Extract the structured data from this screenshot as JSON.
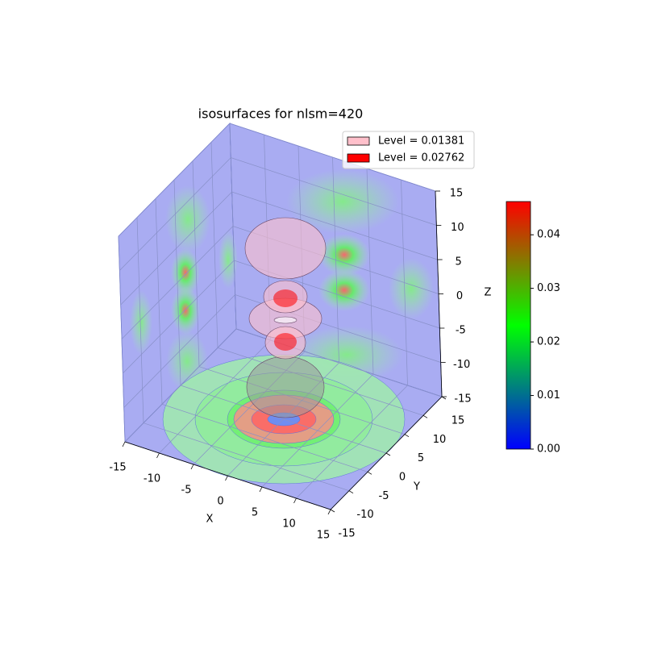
{
  "chart_data": {
    "type": "isosurface3d",
    "title": "isosurfaces for nlsm=420",
    "xlabel": "X",
    "ylabel": "Y",
    "zlabel": "Z",
    "xlim": [
      -15,
      15
    ],
    "ylim": [
      -15,
      15
    ],
    "zlim": [
      -15,
      15
    ],
    "xticks": [
      -15,
      -10,
      -5,
      0,
      5,
      10,
      15
    ],
    "yticks": [
      -15,
      -10,
      -5,
      0,
      5,
      10,
      15
    ],
    "zticks": [
      -15,
      -10,
      -5,
      0,
      5,
      10,
      15
    ],
    "grid": true,
    "pane_color": "#a9acf2",
    "series": [
      {
        "name": "Level = 0.01381",
        "color": "#ffc0cb"
      },
      {
        "name": "Level = 0.02762",
        "color": "#ff0000"
      }
    ],
    "legend": "upper right",
    "colorbar": {
      "clim": [
        0,
        0.0462
      ],
      "colormap": [
        "#0000ff",
        "#00ff00",
        "#ff0000"
      ],
      "ticks": [
        {
          "value": 0,
          "label": "0.00"
        },
        {
          "value": 0.01,
          "label": "0.01"
        },
        {
          "value": 0.02,
          "label": "0.02"
        },
        {
          "value": 0.03,
          "label": "0.03"
        },
        {
          "value": 0.04,
          "label": "0.04"
        }
      ]
    }
  }
}
